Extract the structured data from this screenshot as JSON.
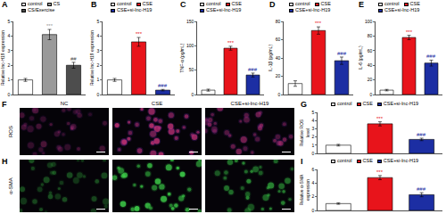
{
  "chart_data": [
    {
      "type": "bar",
      "title": "A",
      "ylabel": "Relative lnc-H19 expression",
      "categories": [
        "control",
        "CS",
        "CS/Exercise"
      ],
      "values": [
        1.0,
        4.1,
        2.0
      ],
      "errors": [
        0.1,
        0.35,
        0.2
      ],
      "colors": [
        "#ffffff",
        "#9a9a9a",
        "#4d4d4d"
      ],
      "ylim": [
        0,
        5
      ],
      "yticks": [
        0,
        1,
        2,
        3,
        4,
        5
      ],
      "legend": "top",
      "tick_labels": "y",
      "grid": false,
      "annotations": [
        {
          "category": "CS",
          "text": "***"
        },
        {
          "category": "CS/Exercise",
          "text": "##"
        }
      ]
    },
    {
      "type": "bar",
      "title": "B",
      "ylabel": "Relative lnc-H19 expression",
      "categories": [
        "control",
        "CSE",
        "CSE+si-lnc-H19"
      ],
      "values": [
        1.0,
        3.6,
        0.3
      ],
      "errors": [
        0.1,
        0.3,
        0.05
      ],
      "colors": [
        "#ffffff",
        "#e8141b",
        "#1c2ea3"
      ],
      "ylim": [
        0,
        5
      ],
      "yticks": [
        0,
        1,
        2,
        3,
        4,
        5
      ],
      "legend": "top",
      "tick_labels": "y",
      "grid": false,
      "annotations": [
        {
          "category": "CSE",
          "text": "***"
        },
        {
          "category": "CSE+si-lnc-H19",
          "text": "###"
        }
      ]
    },
    {
      "type": "bar",
      "title": "C",
      "ylabel": "TNF-α (pg/mL)",
      "categories": [
        "control",
        "CSE",
        "CSE+si-lnc-H19"
      ],
      "values": [
        9,
        95,
        40
      ],
      "errors": [
        2,
        4,
        4
      ],
      "colors": [
        "#ffffff",
        "#e8141b",
        "#1c2ea3"
      ],
      "ylim": [
        0,
        150
      ],
      "yticks": [
        0,
        50,
        100,
        150
      ],
      "legend": "top",
      "tick_labels": "y",
      "grid": false,
      "annotations": [
        {
          "category": "CSE",
          "text": "***"
        },
        {
          "category": "CSE+si-lnc-H19",
          "text": "###"
        }
      ]
    },
    {
      "type": "bar",
      "title": "D",
      "ylabel": "IL-1β (pg/mL)",
      "categories": [
        "control",
        "CSE",
        "CSE+si-lnc-H19"
      ],
      "values": [
        12,
        70,
        37
      ],
      "errors": [
        3,
        4,
        4
      ],
      "colors": [
        "#ffffff",
        "#e8141b",
        "#1c2ea3"
      ],
      "ylim": [
        0,
        80
      ],
      "yticks": [
        0,
        20,
        40,
        60,
        80
      ],
      "legend": "top",
      "tick_labels": "y",
      "grid": false,
      "annotations": [
        {
          "category": "CSE",
          "text": "***"
        },
        {
          "category": "CSE+si-lnc-H19",
          "text": "###"
        }
      ]
    },
    {
      "type": "bar",
      "title": "E",
      "ylabel": "IL-6 (pg/mL)",
      "categories": [
        "control",
        "CSE",
        "CSE+si-lnc-H19"
      ],
      "values": [
        6,
        78,
        43
      ],
      "errors": [
        1,
        3,
        4
      ],
      "colors": [
        "#ffffff",
        "#e8141b",
        "#1c2ea3"
      ],
      "ylim": [
        0,
        100
      ],
      "yticks": [
        0,
        20,
        40,
        60,
        80,
        100
      ],
      "legend": "top",
      "tick_labels": "y",
      "grid": false,
      "annotations": [
        {
          "category": "CSE",
          "text": "***"
        },
        {
          "category": "CSE+si-lnc-H19",
          "text": "###"
        }
      ]
    },
    {
      "type": "bar",
      "title": "G",
      "ylabel": "Relative ROS level",
      "categories": [
        "control",
        "CSE",
        "CSE+si-lnc-H19"
      ],
      "values": [
        1.0,
        3.6,
        1.7
      ],
      "errors": [
        0.1,
        0.25,
        0.15
      ],
      "colors": [
        "#ffffff",
        "#e8141b",
        "#1c2ea3"
      ],
      "ylim": [
        0,
        5
      ],
      "yticks": [
        0,
        1,
        2,
        3,
        4,
        5
      ],
      "legend": "top",
      "tick_labels": "y",
      "grid": false,
      "annotations": [
        {
          "category": "CSE",
          "text": "***"
        },
        {
          "category": "CSE+si-lnc-H19",
          "text": "###"
        }
      ]
    },
    {
      "type": "bar",
      "title": "I",
      "ylabel": "Relative α-SMA expression",
      "categories": [
        "control",
        "CSE",
        "CSE+si-lnc-H19"
      ],
      "values": [
        1.0,
        4.8,
        2.3
      ],
      "errors": [
        0.1,
        0.3,
        0.3
      ],
      "colors": [
        "#ffffff",
        "#e8141b",
        "#1c2ea3"
      ],
      "ylim": [
        0,
        6
      ],
      "yticks": [
        0,
        2,
        4,
        6
      ],
      "legend": "top",
      "tick_labels": "y",
      "grid": false,
      "annotations": [
        {
          "category": "CSE",
          "text": "***"
        },
        {
          "category": "CSE+si-lnc-H19",
          "text": "###"
        }
      ]
    }
  ],
  "image_panels": [
    {
      "title": "F",
      "label": "ROS",
      "columns": [
        "NC",
        "CSE",
        "CSE+si-lnc-H19"
      ]
    },
    {
      "title": "H",
      "label": "α-SMA"
    }
  ]
}
